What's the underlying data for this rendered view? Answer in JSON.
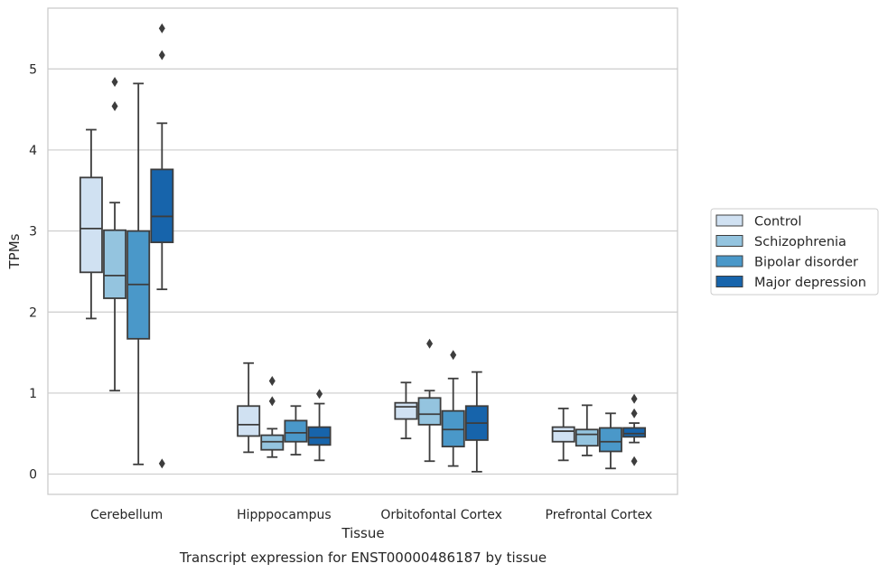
{
  "caption": "Transcript expression for ENST00000486187 by tissue",
  "chart_data": {
    "type": "boxplot",
    "xlabel": "Tissue",
    "ylabel": "TPMs",
    "ylim": [
      -0.25,
      5.75
    ],
    "yticks": [
      "0",
      "1",
      "2",
      "3",
      "4",
      "5"
    ],
    "grid": "horizontal",
    "legend_position": "right",
    "categories": [
      "Cerebellum",
      "Hipppocampus",
      "Orbitofontal Cortex",
      "Prefrontal Cortex"
    ],
    "series": [
      {
        "name": "Control",
        "color": "#d0e1f2",
        "boxes": [
          {
            "whisker_low": 1.92,
            "q1": 2.49,
            "median": 3.03,
            "q3": 3.66,
            "whisker_high": 4.25,
            "outliers": []
          },
          {
            "whisker_low": 0.27,
            "q1": 0.47,
            "median": 0.61,
            "q3": 0.84,
            "whisker_high": 1.37,
            "outliers": []
          },
          {
            "whisker_low": 0.44,
            "q1": 0.68,
            "median": 0.83,
            "q3": 0.88,
            "whisker_high": 1.13,
            "outliers": []
          },
          {
            "whisker_low": 0.17,
            "q1": 0.4,
            "median": 0.53,
            "q3": 0.58,
            "whisker_high": 0.81,
            "outliers": []
          }
        ]
      },
      {
        "name": "Schizophrenia",
        "color": "#94c4df",
        "boxes": [
          {
            "whisker_low": 1.03,
            "q1": 2.17,
            "median": 2.45,
            "q3": 3.01,
            "whisker_high": 3.35,
            "outliers": [
              4.54,
              4.84
            ]
          },
          {
            "whisker_low": 0.21,
            "q1": 0.3,
            "median": 0.4,
            "q3": 0.48,
            "whisker_high": 0.56,
            "outliers": [
              0.9,
              1.15
            ]
          },
          {
            "whisker_low": 0.16,
            "q1": 0.61,
            "median": 0.74,
            "q3": 0.94,
            "whisker_high": 1.03,
            "outliers": [
              1.61
            ]
          },
          {
            "whisker_low": 0.23,
            "q1": 0.35,
            "median": 0.49,
            "q3": 0.55,
            "whisker_high": 0.85,
            "outliers": []
          }
        ]
      },
      {
        "name": "Bipolar disorder",
        "color": "#4a98c9",
        "boxes": [
          {
            "whisker_low": 0.12,
            "q1": 1.67,
            "median": 2.34,
            "q3": 3.0,
            "whisker_high": 4.82,
            "outliers": []
          },
          {
            "whisker_low": 0.24,
            "q1": 0.4,
            "median": 0.51,
            "q3": 0.66,
            "whisker_high": 0.84,
            "outliers": []
          },
          {
            "whisker_low": 0.1,
            "q1": 0.34,
            "median": 0.55,
            "q3": 0.78,
            "whisker_high": 1.18,
            "outliers": [
              1.47
            ]
          },
          {
            "whisker_low": 0.07,
            "q1": 0.28,
            "median": 0.4,
            "q3": 0.57,
            "whisker_high": 0.75,
            "outliers": []
          }
        ]
      },
      {
        "name": "Major depression",
        "color": "#1764ab",
        "boxes": [
          {
            "whisker_low": 2.28,
            "q1": 2.86,
            "median": 3.18,
            "q3": 3.76,
            "whisker_high": 4.33,
            "outliers": [
              0.13,
              5.17,
              5.5
            ]
          },
          {
            "whisker_low": 0.17,
            "q1": 0.36,
            "median": 0.45,
            "q3": 0.58,
            "whisker_high": 0.87,
            "outliers": [
              0.99
            ]
          },
          {
            "whisker_low": 0.03,
            "q1": 0.42,
            "median": 0.63,
            "q3": 0.84,
            "whisker_high": 1.26,
            "outliers": []
          },
          {
            "whisker_low": 0.39,
            "q1": 0.46,
            "median": 0.5,
            "q3": 0.57,
            "whisker_high": 0.63,
            "outliers": [
              0.16,
              0.75,
              0.93
            ]
          }
        ]
      }
    ]
  }
}
